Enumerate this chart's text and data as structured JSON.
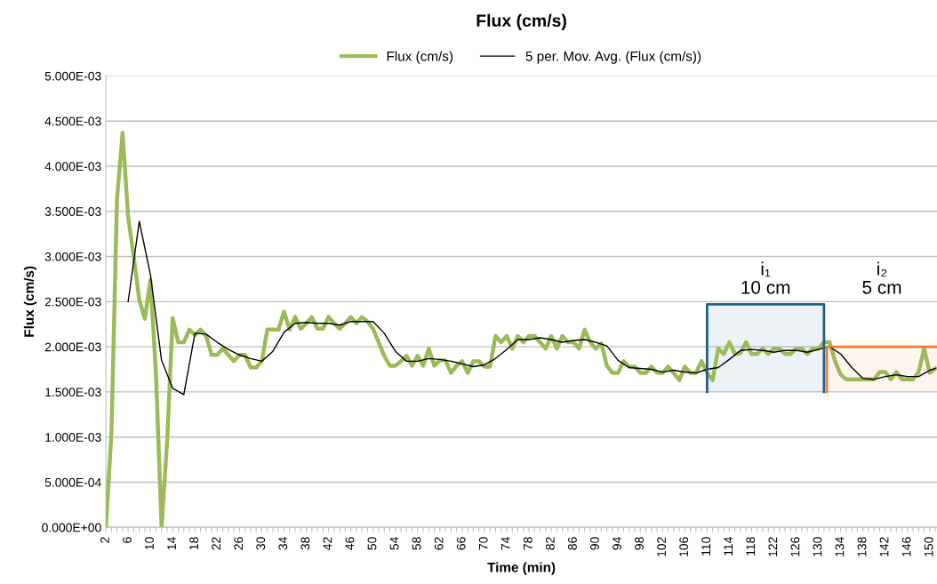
{
  "chart_data": {
    "type": "line",
    "title": "Flux (cm/s)",
    "xlabel": "Time (min)",
    "ylabel": "Flux (cm/s)",
    "series": [
      {
        "name": "Flux (cm/s)",
        "color": "#9bbb59",
        "x": [
          2,
          3,
          4,
          5,
          6,
          7,
          8,
          9,
          10,
          11,
          12,
          13,
          14,
          15,
          16,
          17,
          18,
          19,
          20,
          21,
          22,
          23,
          24,
          25,
          26,
          27,
          28,
          29,
          30,
          31,
          32,
          33,
          34,
          35,
          36,
          37,
          38,
          39,
          40,
          41,
          42,
          43,
          44,
          45,
          46,
          47,
          48,
          49,
          50,
          51,
          52,
          53,
          54,
          55,
          56,
          57,
          58,
          59,
          60,
          61,
          62,
          63,
          64,
          65,
          66,
          67,
          68,
          69,
          70,
          71,
          72,
          73,
          74,
          75,
          76,
          77,
          78,
          79,
          80,
          81,
          82,
          83,
          84,
          85,
          86,
          87,
          88,
          89,
          90,
          91,
          92,
          93,
          94,
          95,
          96,
          97,
          98,
          99,
          100,
          101,
          102,
          103,
          104,
          105,
          106,
          107,
          108,
          109,
          110,
          111,
          112,
          113,
          114,
          115,
          116,
          117,
          118,
          119,
          120,
          121,
          122,
          123,
          124,
          125,
          126,
          127,
          128,
          129,
          130,
          131,
          132,
          133,
          134,
          135,
          136,
          137,
          138,
          139,
          140,
          141,
          142,
          143,
          144,
          145,
          146,
          147,
          148,
          149,
          150,
          151
        ],
        "values": [
          0,
          0.00105,
          0.00364,
          0.00437,
          0.00344,
          0.003,
          0.00252,
          0.00231,
          0.00274,
          0.0017,
          0,
          0.00095,
          0.00232,
          0.00205,
          0.00205,
          0.00219,
          0.00213,
          0.00219,
          0.00212,
          0.00191,
          0.00191,
          0.00198,
          0.00191,
          0.00184,
          0.00191,
          0.00191,
          0.00177,
          0.00177,
          0.00184,
          0.00219,
          0.00219,
          0.00219,
          0.00239,
          0.00219,
          0.00233,
          0.0022,
          0.00226,
          0.00233,
          0.0022,
          0.0022,
          0.00233,
          0.00226,
          0.0022,
          0.00226,
          0.00233,
          0.00226,
          0.00233,
          0.00228,
          0.0022,
          0.00205,
          0.0019,
          0.00179,
          0.00179,
          0.00184,
          0.0019,
          0.00179,
          0.0019,
          0.00179,
          0.00198,
          0.00179,
          0.00185,
          0.00185,
          0.00171,
          0.00179,
          0.00184,
          0.00171,
          0.00184,
          0.00184,
          0.00178,
          0.00178,
          0.00212,
          0.00205,
          0.00212,
          0.00198,
          0.00212,
          0.00205,
          0.00212,
          0.00212,
          0.00205,
          0.00198,
          0.00212,
          0.00198,
          0.00212,
          0.00205,
          0.00205,
          0.00198,
          0.00219,
          0.00205,
          0.00198,
          0.00204,
          0.00179,
          0.00171,
          0.00171,
          0.00184,
          0.00178,
          0.00178,
          0.00171,
          0.00171,
          0.00178,
          0.00171,
          0.00171,
          0.00178,
          0.00171,
          0.00163,
          0.00178,
          0.00171,
          0.00171,
          0.00184,
          0.00171,
          0.00163,
          0.00198,
          0.00192,
          0.00205,
          0.00192,
          0.00193,
          0.00205,
          0.00192,
          0.00192,
          0.00198,
          0.00192,
          0.00198,
          0.00198,
          0.00192,
          0.00192,
          0.00198,
          0.00198,
          0.00192,
          0.00198,
          0.00198,
          0.00205,
          0.00205,
          0.00184,
          0.00169,
          0.00164,
          0.00164,
          0.00164,
          0.00164,
          0.00164,
          0.00164,
          0.00172,
          0.00172,
          0.00164,
          0.00172,
          0.00164,
          0.00164,
          0.00164,
          0.00172,
          0.00198,
          0.00171,
          0.00176
        ]
      },
      {
        "name": "5 per. Mov. Avg. (Flux (cm/s))",
        "color": "#000000",
        "x": [
          6,
          8,
          10,
          12,
          14,
          16,
          18,
          20,
          22,
          24,
          26,
          28,
          30,
          32,
          34,
          36,
          38,
          40,
          42,
          44,
          46,
          48,
          50,
          52,
          54,
          56,
          58,
          60,
          62,
          64,
          66,
          68,
          70,
          72,
          74,
          76,
          78,
          80,
          82,
          84,
          86,
          88,
          90,
          92,
          94,
          96,
          98,
          100,
          102,
          104,
          106,
          108,
          110,
          112,
          114,
          116,
          118,
          120,
          122,
          124,
          126,
          128,
          130,
          132,
          134,
          136,
          138,
          140,
          142,
          144,
          146,
          148,
          150,
          151
        ],
        "values": [
          0.0025,
          0.00339,
          0.0028,
          0.00185,
          0.00154,
          0.00147,
          0.00215,
          0.00214,
          0.00205,
          0.00197,
          0.00191,
          0.00187,
          0.00184,
          0.00195,
          0.00216,
          0.00226,
          0.00227,
          0.00226,
          0.00226,
          0.00224,
          0.00228,
          0.00228,
          0.00228,
          0.00215,
          0.00195,
          0.00184,
          0.00184,
          0.00187,
          0.00186,
          0.00184,
          0.00181,
          0.00178,
          0.0018,
          0.00187,
          0.00197,
          0.00208,
          0.00208,
          0.0021,
          0.00208,
          0.00205,
          0.00207,
          0.00208,
          0.00205,
          0.00201,
          0.00185,
          0.00177,
          0.00176,
          0.00175,
          0.00172,
          0.00174,
          0.00172,
          0.00171,
          0.00175,
          0.00177,
          0.00186,
          0.00196,
          0.00197,
          0.00196,
          0.00194,
          0.00196,
          0.00196,
          0.00194,
          0.00197,
          0.002,
          0.00192,
          0.00177,
          0.00165,
          0.00164,
          0.00167,
          0.00169,
          0.00167,
          0.00167,
          0.00174,
          0.00176
        ]
      }
    ],
    "xlim": [
      2,
      151.3
    ],
    "ylim": [
      0,
      0.005
    ],
    "yticks": [
      {
        "value": 0,
        "label": "0.000E+00"
      },
      {
        "value": 0.0005,
        "label": "5.000E-04"
      },
      {
        "value": 0.001,
        "label": "1.000E-03"
      },
      {
        "value": 0.0015,
        "label": "1.500E-03"
      },
      {
        "value": 0.002,
        "label": "2.000E-03"
      },
      {
        "value": 0.0025,
        "label": "2.500E-03"
      },
      {
        "value": 0.003,
        "label": "3.000E-03"
      },
      {
        "value": 0.0035,
        "label": "3.500E-03"
      },
      {
        "value": 0.004,
        "label": "4.000E-03"
      },
      {
        "value": 0.0045,
        "label": "4.500E-03"
      },
      {
        "value": 0.005,
        "label": "5.000E-03"
      }
    ],
    "xticks": [
      2,
      {
        "value": 3,
        "label": null
      },
      {
        "value": 4,
        "label": null
      },
      {
        "value": 5,
        "label": null
      },
      6,
      {
        "value": 7,
        "label": null
      },
      {
        "value": 8,
        "label": null
      },
      {
        "value": 9,
        "label": null
      },
      10,
      {
        "value": 11,
        "label": null
      },
      {
        "value": 12,
        "label": null
      },
      {
        "value": 13,
        "label": null
      },
      14,
      {
        "value": 15,
        "label": null
      },
      {
        "value": 16,
        "label": null
      },
      {
        "value": 17,
        "label": null
      },
      18,
      {
        "value": 19,
        "label": null
      },
      {
        "value": 20,
        "label": null
      },
      {
        "value": 21,
        "label": null
      },
      22,
      {
        "value": 23,
        "label": null
      },
      {
        "value": 24,
        "label": null
      },
      {
        "value": 25,
        "label": null
      },
      26,
      {
        "value": 27,
        "label": null
      },
      {
        "value": 28,
        "label": null
      },
      {
        "value": 29,
        "label": null
      },
      30,
      {
        "value": 31,
        "label": null
      },
      {
        "value": 32,
        "label": null
      },
      {
        "value": 33,
        "label": null
      },
      34,
      {
        "value": 35,
        "label": null
      },
      {
        "value": 36,
        "label": null
      },
      {
        "value": 37,
        "label": null
      },
      38,
      {
        "value": 39,
        "label": null
      },
      {
        "value": 40,
        "label": null
      },
      {
        "value": 41,
        "label": null
      },
      42,
      {
        "value": 43,
        "label": null
      },
      {
        "value": 44,
        "label": null
      },
      {
        "value": 45,
        "label": null
      },
      46,
      {
        "value": 47,
        "label": null
      },
      {
        "value": 48,
        "label": null
      },
      {
        "value": 49,
        "label": null
      },
      50,
      {
        "value": 51,
        "label": null
      },
      {
        "value": 52,
        "label": null
      },
      {
        "value": 53,
        "label": null
      },
      54,
      {
        "value": 55,
        "label": null
      },
      {
        "value": 56,
        "label": null
      },
      {
        "value": 57,
        "label": null
      },
      58,
      {
        "value": 59,
        "label": null
      },
      {
        "value": 60,
        "label": null
      },
      {
        "value": 61,
        "label": null
      },
      62,
      {
        "value": 63,
        "label": null
      },
      {
        "value": 64,
        "label": null
      },
      {
        "value": 65,
        "label": null
      },
      66,
      {
        "value": 67,
        "label": null
      },
      {
        "value": 68,
        "label": null
      },
      {
        "value": 69,
        "label": null
      },
      70,
      {
        "value": 71,
        "label": null
      },
      {
        "value": 72,
        "label": null
      },
      {
        "value": 73,
        "label": null
      },
      74,
      {
        "value": 75,
        "label": null
      },
      {
        "value": 76,
        "label": null
      },
      {
        "value": 77,
        "label": null
      },
      78,
      {
        "value": 79,
        "label": null
      },
      {
        "value": 80,
        "label": null
      },
      {
        "value": 81,
        "label": null
      },
      82,
      {
        "value": 83,
        "label": null
      },
      {
        "value": 84,
        "label": null
      },
      {
        "value": 85,
        "label": null
      },
      86,
      {
        "value": 87,
        "label": null
      },
      {
        "value": 88,
        "label": null
      },
      {
        "value": 89,
        "label": null
      },
      90,
      {
        "value": 91,
        "label": null
      },
      {
        "value": 92,
        "label": null
      },
      {
        "value": 93,
        "label": null
      },
      94,
      {
        "value": 95,
        "label": null
      },
      {
        "value": 96,
        "label": null
      },
      {
        "value": 97,
        "label": null
      },
      98,
      {
        "value": 99,
        "label": null
      },
      {
        "value": 100,
        "label": null
      },
      {
        "value": 101,
        "label": null
      },
      102,
      {
        "value": 103,
        "label": null
      },
      {
        "value": 104,
        "label": null
      },
      {
        "value": 105,
        "label": null
      },
      106,
      {
        "value": 107,
        "label": null
      },
      {
        "value": 108,
        "label": null
      },
      {
        "value": 109,
        "label": null
      },
      110,
      {
        "value": 111,
        "label": null
      },
      {
        "value": 112,
        "label": null
      },
      {
        "value": 113,
        "label": null
      },
      114,
      {
        "value": 115,
        "label": null
      },
      {
        "value": 116,
        "label": null
      },
      {
        "value": 117,
        "label": null
      },
      118,
      {
        "value": 119,
        "label": null
      },
      {
        "value": 120,
        "label": null
      },
      {
        "value": 121,
        "label": null
      },
      122,
      {
        "value": 123,
        "label": null
      },
      {
        "value": 124,
        "label": null
      },
      {
        "value": 125,
        "label": null
      },
      126,
      {
        "value": 127,
        "label": null
      },
      {
        "value": 128,
        "label": null
      },
      {
        "value": 129,
        "label": null
      },
      130,
      {
        "value": 131,
        "label": null
      },
      {
        "value": 132,
        "label": null
      },
      {
        "value": 133,
        "label": null
      },
      134,
      {
        "value": 135,
        "label": null
      },
      {
        "value": 136,
        "label": null
      },
      {
        "value": 137,
        "label": null
      },
      138,
      {
        "value": 139,
        "label": null
      },
      {
        "value": 140,
        "label": null
      },
      {
        "value": 141,
        "label": null
      },
      142,
      {
        "value": 143,
        "label": null
      },
      {
        "value": 144,
        "label": null
      },
      {
        "value": 145,
        "label": null
      },
      146,
      {
        "value": 147,
        "label": null
      },
      {
        "value": 148,
        "label": null
      },
      {
        "value": 149,
        "label": null
      },
      150,
      {
        "value": 151,
        "label": null
      }
    ],
    "bands": [
      {
        "axis": "x",
        "from": 110,
        "to": 131,
        "label": "i₁\n10 cm",
        "color": "#1f5f8b"
      },
      {
        "axis": "x",
        "from": 131.5,
        "to": 151.3,
        "label": "i₂\n5 cm",
        "color": "#ed7d31"
      }
    ],
    "grid": "y",
    "legend": "top",
    "marker": "none",
    "line_style": "solid"
  }
}
